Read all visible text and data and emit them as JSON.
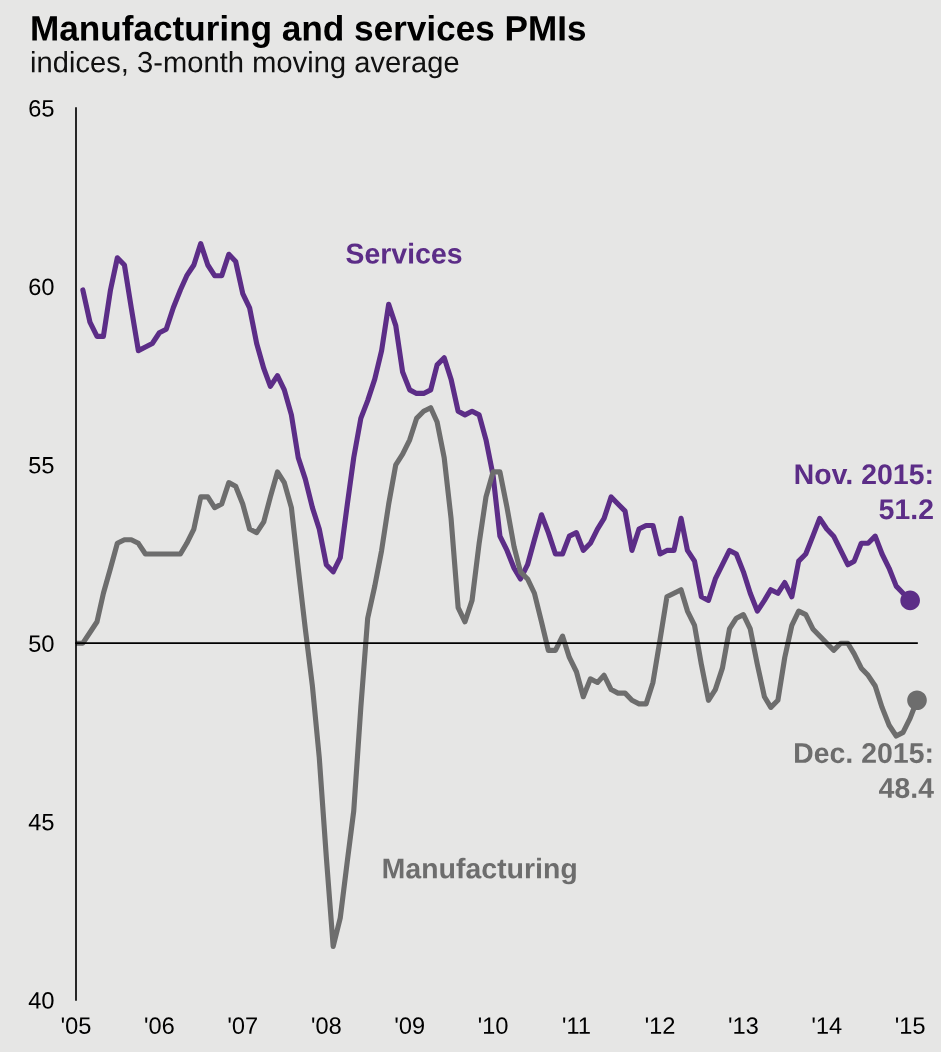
{
  "chart_data": {
    "type": "line",
    "title": "Manufacturing and services PMIs",
    "subtitle": "indices, 3-month moving average",
    "x": [
      "2005-11",
      "2005-12",
      "2006-01",
      "2006-02",
      "2006-03",
      "2006-04",
      "2006-05",
      "2006-06",
      "2006-07",
      "2006-08",
      "2006-09",
      "2006-10",
      "2006-11",
      "2006-12",
      "2007-01",
      "2007-02",
      "2007-03",
      "2007-04",
      "2007-05",
      "2007-06",
      "2007-07",
      "2007-08",
      "2007-09",
      "2007-10",
      "2007-11",
      "2007-12",
      "2008-01",
      "2008-02",
      "2008-03",
      "2008-04",
      "2008-05",
      "2008-06",
      "2008-07",
      "2008-08",
      "2008-09",
      "2008-10",
      "2008-11",
      "2008-12",
      "2009-01",
      "2009-02",
      "2009-03",
      "2009-04",
      "2009-05",
      "2009-06",
      "2009-07",
      "2009-08",
      "2009-09",
      "2009-10",
      "2009-11",
      "2009-12",
      "2010-01",
      "2010-02",
      "2010-03",
      "2010-04",
      "2010-05",
      "2010-06",
      "2010-07",
      "2010-08",
      "2010-09",
      "2010-10",
      "2010-11",
      "2010-12",
      "2011-01",
      "2011-02",
      "2011-03",
      "2011-04",
      "2011-05",
      "2011-06",
      "2011-07",
      "2011-08",
      "2011-09",
      "2011-10",
      "2011-11",
      "2011-12",
      "2012-01",
      "2012-02",
      "2012-03",
      "2012-04",
      "2012-05",
      "2012-06",
      "2012-07",
      "2012-08",
      "2012-09",
      "2012-10",
      "2012-11",
      "2012-12",
      "2013-01",
      "2013-02",
      "2013-03",
      "2013-04",
      "2013-05",
      "2013-06",
      "2013-07",
      "2013-08",
      "2013-09",
      "2013-10",
      "2013-11",
      "2013-12",
      "2014-01",
      "2014-02",
      "2014-03",
      "2014-04",
      "2014-05",
      "2014-06",
      "2014-07",
      "2014-08",
      "2014-09",
      "2014-10",
      "2014-11",
      "2014-12",
      "2015-01",
      "2015-02",
      "2015-03",
      "2015-04",
      "2015-05",
      "2015-06",
      "2015-07",
      "2015-08",
      "2015-09",
      "2015-10",
      "2015-11",
      "2015-12"
    ],
    "xlim": [
      "2005-11",
      "2015-12"
    ],
    "xticks": [
      {
        "value": "2005-11",
        "label": "'05"
      },
      {
        "value": "2006-11",
        "label": "'06"
      },
      {
        "value": "2007-11",
        "label": "'07"
      },
      {
        "value": "2008-11",
        "label": "'08"
      },
      {
        "value": "2009-11",
        "label": "'09"
      },
      {
        "value": "2010-11",
        "label": "'10"
      },
      {
        "value": "2011-11",
        "label": "'11"
      },
      {
        "value": "2012-11",
        "label": "'12"
      },
      {
        "value": "2013-11",
        "label": "'13"
      },
      {
        "value": "2014-11",
        "label": "'14"
      },
      {
        "value": "2015-11",
        "label": "'15"
      }
    ],
    "ylim": [
      40,
      65
    ],
    "yticks": [
      40,
      45,
      50,
      55,
      60,
      65
    ],
    "ref_lines": [
      {
        "axis": "y",
        "value": 50
      }
    ],
    "series": [
      {
        "name": "Services",
        "color": "#5c2d87",
        "values": [
          null,
          59.9,
          59.0,
          58.6,
          58.6,
          59.9,
          60.8,
          60.6,
          59.4,
          58.2,
          58.3,
          58.4,
          58.7,
          58.8,
          59.4,
          59.9,
          60.3,
          60.6,
          61.2,
          60.6,
          60.3,
          60.3,
          60.9,
          60.7,
          59.8,
          59.4,
          58.4,
          57.7,
          57.2,
          57.5,
          57.1,
          56.4,
          55.2,
          54.6,
          53.8,
          53.2,
          52.2,
          52.0,
          52.4,
          53.9,
          55.2,
          56.3,
          56.8,
          57.4,
          58.2,
          59.5,
          58.9,
          57.6,
          57.1,
          57.0,
          57.0,
          57.1,
          57.8,
          58.0,
          57.4,
          56.5,
          56.4,
          56.5,
          56.4,
          55.7,
          54.7,
          53.0,
          52.6,
          52.1,
          51.8,
          52.2,
          52.9,
          53.6,
          53.1,
          52.5,
          52.5,
          53.0,
          53.1,
          52.6,
          52.8,
          53.2,
          53.5,
          54.1,
          53.9,
          53.7,
          52.6,
          53.2,
          53.3,
          53.3,
          52.5,
          52.6,
          52.6,
          53.5,
          52.6,
          52.3,
          51.3,
          51.2,
          51.8,
          52.2,
          52.6,
          52.5,
          52.0,
          51.4,
          50.9,
          51.2,
          51.5,
          51.4,
          51.7,
          51.3,
          52.3,
          52.5,
          53.0,
          53.5,
          53.2,
          53.0,
          52.6,
          52.2,
          52.3,
          52.8,
          52.8,
          53.0,
          52.5,
          52.1,
          51.6,
          51.4,
          51.2,
          null
        ]
      },
      {
        "name": "Manufacturing",
        "color": "#6d6d6d",
        "values": [
          50.0,
          50.0,
          50.3,
          50.6,
          51.4,
          52.1,
          52.8,
          52.9,
          52.9,
          52.8,
          52.5,
          52.5,
          52.5,
          52.5,
          52.5,
          52.5,
          52.8,
          53.2,
          54.1,
          54.1,
          53.8,
          53.9,
          54.5,
          54.4,
          53.9,
          53.2,
          53.1,
          53.4,
          54.1,
          54.8,
          54.5,
          53.8,
          52.1,
          50.4,
          48.8,
          46.8,
          44.0,
          41.5,
          42.3,
          43.9,
          45.3,
          48.2,
          50.7,
          51.6,
          52.6,
          53.9,
          55.0,
          55.3,
          55.7,
          56.3,
          56.5,
          56.6,
          56.2,
          55.2,
          53.5,
          51.0,
          50.6,
          51.2,
          52.8,
          54.1,
          54.8,
          54.8,
          53.8,
          52.7,
          52.0,
          51.8,
          51.4,
          50.6,
          49.8,
          49.8,
          50.2,
          49.6,
          49.2,
          48.5,
          49.0,
          48.9,
          49.1,
          48.7,
          48.6,
          48.6,
          48.4,
          48.3,
          48.3,
          48.9,
          50.1,
          51.3,
          51.4,
          51.5,
          50.9,
          50.5,
          49.4,
          48.4,
          48.7,
          49.3,
          50.4,
          50.7,
          50.8,
          50.4,
          49.4,
          48.5,
          48.2,
          48.4,
          49.6,
          50.5,
          50.9,
          50.8,
          50.4,
          50.2,
          50.0,
          49.8,
          50.0,
          50.0,
          49.7,
          49.3,
          49.1,
          48.8,
          48.2,
          47.7,
          47.4,
          47.5,
          47.9,
          48.4
        ]
      },
      {
        "type": "scatter",
        "marker": "circle",
        "color": "#5c2d87",
        "x": [
          "2015-11"
        ],
        "values": [
          51.2
        ]
      },
      {
        "type": "scatter",
        "marker": "circle",
        "color": "#6d6d6d",
        "x": [
          "2015-12"
        ],
        "values": [
          48.4
        ]
      }
    ],
    "annotations": [
      "Nov. 2015:\n51.2",
      "Dec. 2015:\n48.4"
    ]
  }
}
